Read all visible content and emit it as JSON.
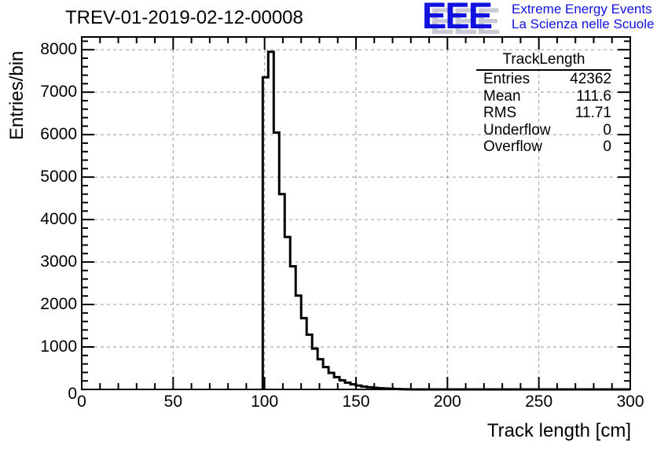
{
  "header": {
    "title": "TREV-01-2019-02-12-00008"
  },
  "logo": {
    "acronym": "EEE",
    "line1": "Extreme Energy Events",
    "line2": "La Scienza nelle Scuole",
    "blue": "#1212e0",
    "shadow": "#c9c9d6"
  },
  "stats_box": {
    "title": "TrackLength",
    "rows": [
      {
        "label": "Entries",
        "value": "42362"
      },
      {
        "label": "Mean",
        "value": "111.6"
      },
      {
        "label": "RMS",
        "value": "11.71"
      },
      {
        "label": "Underflow",
        "value": "0"
      },
      {
        "label": "Overflow",
        "value": "0"
      }
    ]
  },
  "chart_data": {
    "type": "bar",
    "title": "TREV-01-2019-02-12-00008",
    "xlabel": "Track length [cm]",
    "ylabel": "Entries/bin",
    "xlim": [
      0,
      300
    ],
    "ylim": [
      0,
      8300
    ],
    "x_major_ticks": [
      0,
      50,
      100,
      150,
      200,
      250,
      300
    ],
    "x_minor_step": 10,
    "y_major_ticks": [
      0,
      1000,
      2000,
      3000,
      4000,
      5000,
      6000,
      7000,
      8000
    ],
    "y_minor_step": 200,
    "grid": true,
    "legend_position": "none",
    "bin_start": 99,
    "bin_width": 3,
    "values": [
      7350,
      7950,
      6050,
      4600,
      3590,
      2900,
      2210,
      1680,
      1290,
      960,
      710,
      525,
      390,
      290,
      215,
      160,
      120,
      90,
      67,
      50,
      37,
      27,
      20,
      14,
      9,
      5,
      2
    ],
    "colors": {
      "line": "#000000",
      "grid": "#999999",
      "frame": "#000000"
    }
  }
}
